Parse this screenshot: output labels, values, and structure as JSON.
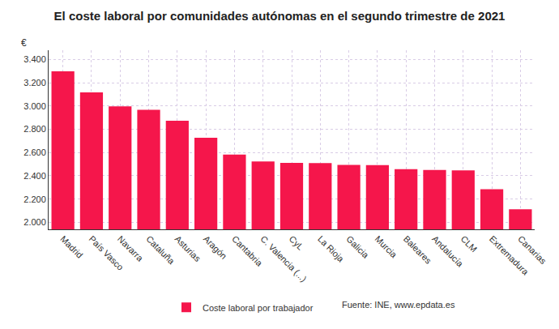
{
  "chart_data": {
    "type": "bar",
    "title": "El coste laboral por comunidades autónomas en el segundo trimestre de 2021",
    "y_label": "€",
    "categories": [
      "Madrid",
      "País Vasco",
      "Navarra",
      "Cataluña",
      "Asturias",
      "Aragón",
      "Cantabria",
      "C. Valencia (...)",
      "CyL",
      "La Rioja",
      "Galicia",
      "Murcia",
      "Baleares",
      "Andalucía",
      "CLM",
      "Extremadura",
      "Canarias"
    ],
    "series": [
      {
        "name": "Coste laboral por trabajador",
        "color": "#f5164b",
        "values": [
          3298,
          3117,
          2997,
          2968,
          2874,
          2727,
          2583,
          2524,
          2511,
          2509,
          2494,
          2493,
          2457,
          2450,
          2447,
          2285,
          2112
        ]
      }
    ],
    "ylim": [
      1940,
      3480
    ],
    "yticks": [
      {
        "value": 2000,
        "label": "2.000"
      },
      {
        "value": 2200,
        "label": "2.200"
      },
      {
        "value": 2400,
        "label": "2.400"
      },
      {
        "value": 2600,
        "label": "2.600"
      },
      {
        "value": 2800,
        "label": "2.800"
      },
      {
        "value": 3000,
        "label": "3.000"
      },
      {
        "value": 3200,
        "label": "3.200"
      },
      {
        "value": 3400,
        "label": "3.400"
      }
    ],
    "grid": true,
    "legend": "bottom",
    "annotations": [
      "Fuente: INE, www.epdata.es"
    ]
  }
}
